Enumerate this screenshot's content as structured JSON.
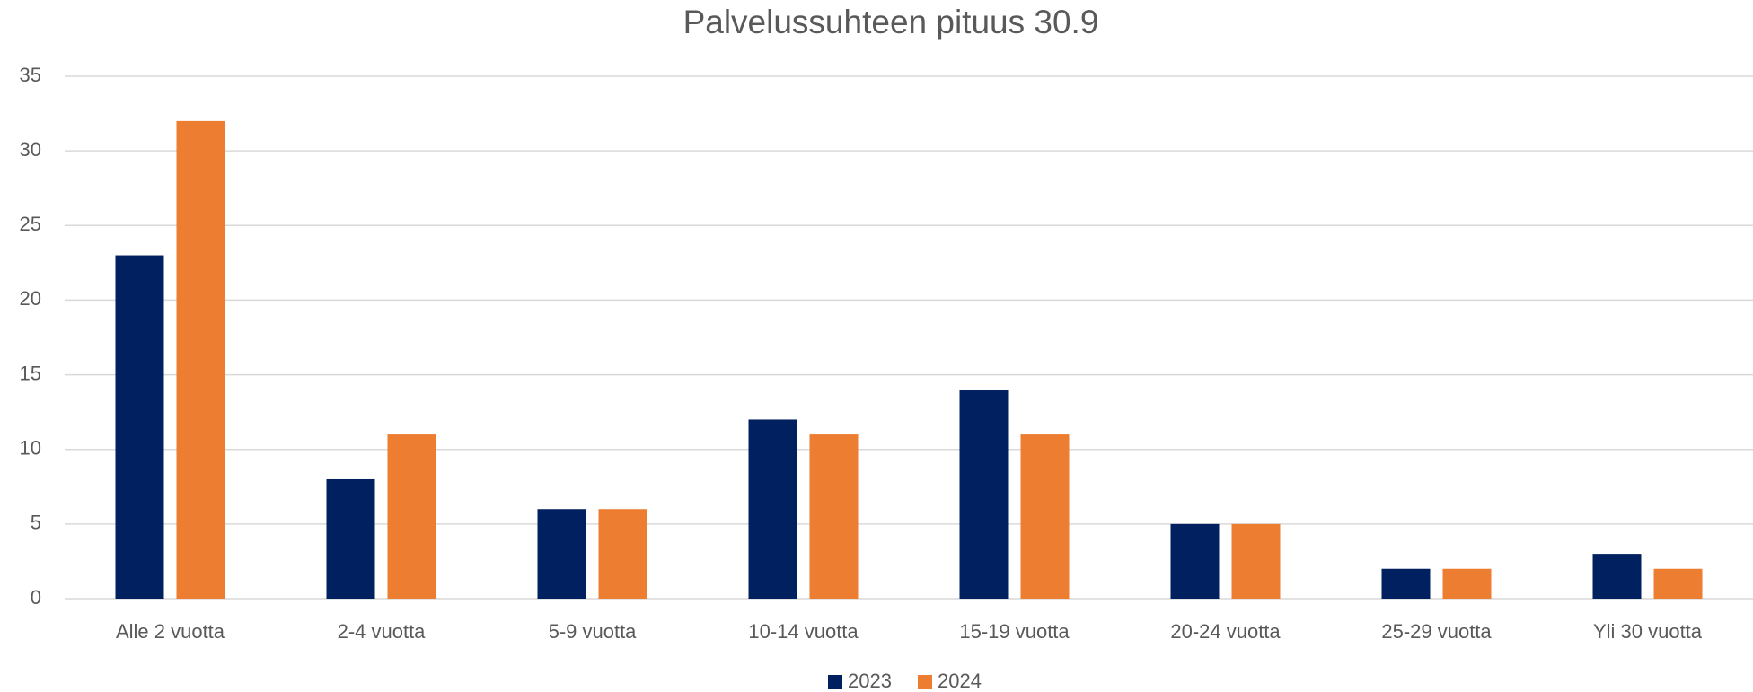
{
  "chart_data": {
    "type": "bar",
    "title": "Palvelussuhteen pituus 30.9",
    "categories": [
      "Alle 2 vuotta",
      "2-4 vuotta",
      "5-9 vuotta",
      "10-14 vuotta",
      "15-19 vuotta",
      "20-24 vuotta",
      "25-29 vuotta",
      "Yli 30 vuotta"
    ],
    "series": [
      {
        "name": "2023",
        "color": "#002060",
        "values": [
          23,
          8,
          6,
          12,
          14,
          5,
          2,
          3
        ]
      },
      {
        "name": "2024",
        "color": "#ed7d31",
        "values": [
          32,
          11,
          6,
          11,
          11,
          5,
          2,
          2
        ]
      }
    ],
    "ylim": [
      0,
      35
    ],
    "yticks": [
      0,
      5,
      10,
      15,
      20,
      25,
      30,
      35
    ],
    "grid": true,
    "legend": "bottom"
  }
}
